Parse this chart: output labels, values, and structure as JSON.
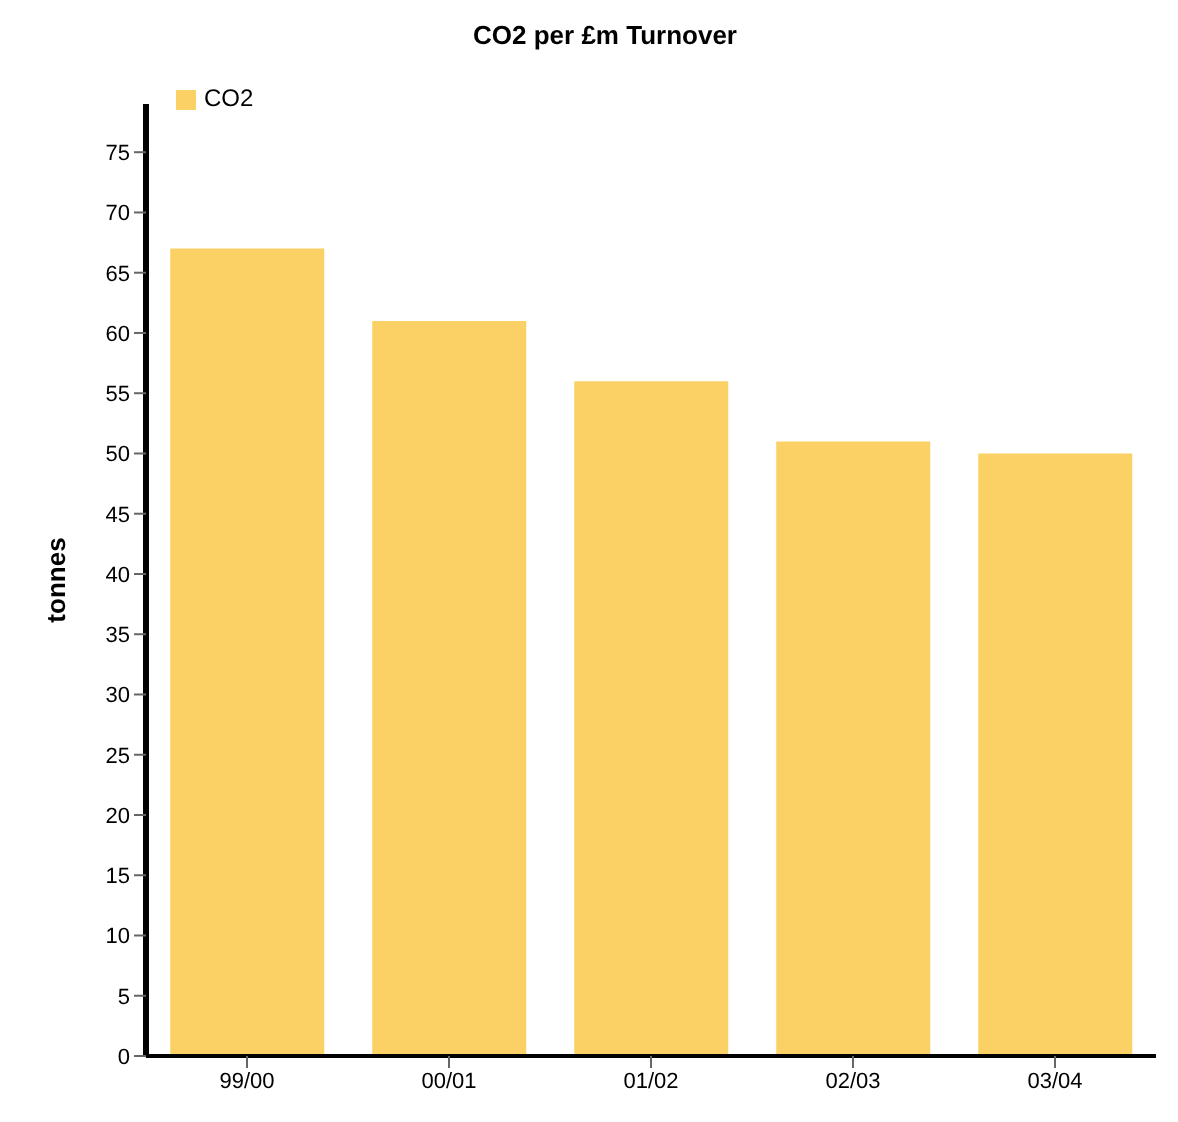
{
  "chart_data": {
    "type": "bar",
    "title": "CO2 per £m Turnover",
    "ylabel": "tonnes",
    "categories": [
      "99/00",
      "00/01",
      "01/02",
      "02/03",
      "03/04"
    ],
    "series": [
      {
        "name": "CO2",
        "color": "#fbd165",
        "values": [
          67,
          61,
          56,
          51,
          50
        ]
      }
    ],
    "ylim": [
      0,
      79
    ],
    "yticks": [
      0,
      5,
      10,
      15,
      20,
      25,
      30,
      35,
      40,
      45,
      50,
      55,
      60,
      65,
      70,
      75
    ],
    "legend": "top left"
  }
}
